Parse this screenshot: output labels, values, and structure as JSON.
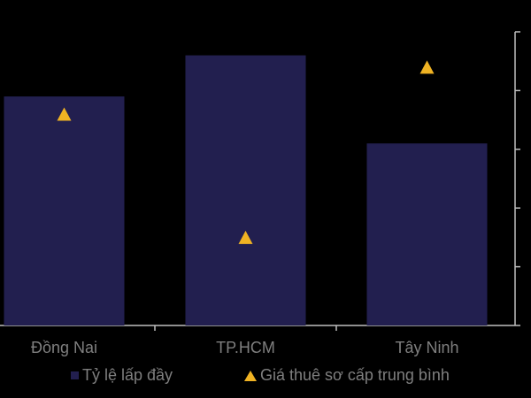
{
  "chart_data": {
    "type": "bar",
    "categories": [
      "Đồng Nai",
      "TP.HCM",
      "Tây Ninh"
    ],
    "series": [
      {
        "name": "Tỷ lệ lấp đầy",
        "kind": "bar",
        "axis": "primary",
        "color": "#221f4f",
        "values": [
          0.89,
          0.96,
          0.81
        ]
      },
      {
        "name": "Giá thuê sơ cấp trung bình",
        "kind": "marker-triangle",
        "axis": "secondary",
        "color": "#f0b323",
        "values": [
          3.6,
          1.5,
          4.4
        ]
      }
    ],
    "y_primary": {
      "ylim": [
        0.5,
        1.0
      ],
      "tick_labels_shown": false
    },
    "y_secondary": {
      "ylim": [
        0,
        5
      ],
      "step": 1,
      "tick_labels_shown": false,
      "position": "right"
    },
    "title": "",
    "xlabel": "",
    "ylabel": "",
    "grid": false,
    "legend_position": "bottom",
    "background": "#000000",
    "text_color": "#7f7f7f",
    "axis_color": "#bfbfbf"
  },
  "legend": {
    "bar_label": "Tỷ lệ lấp đầy",
    "marker_label": "Giá thuê sơ cấp trung bình"
  }
}
